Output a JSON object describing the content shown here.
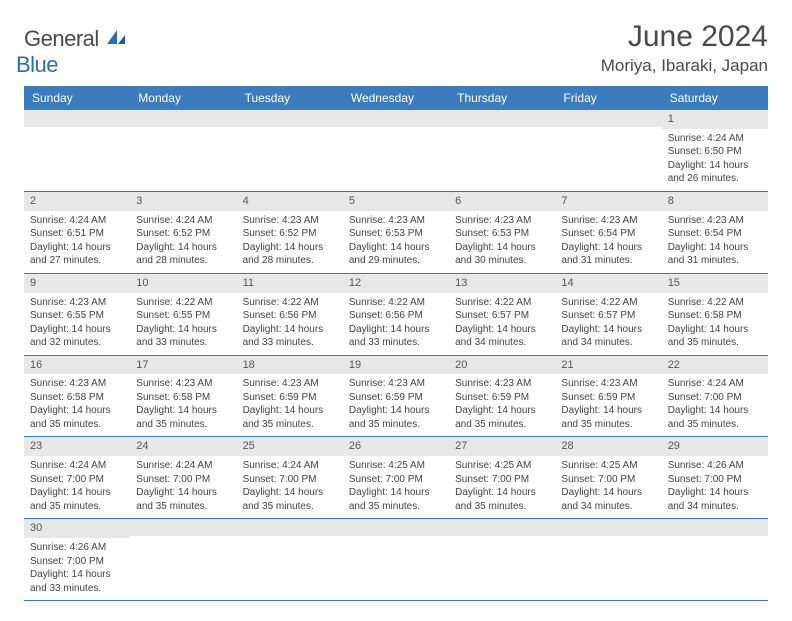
{
  "brand": {
    "part1": "General",
    "part2": "Blue"
  },
  "title": "June 2024",
  "location": "Moriya, Ibaraki, Japan",
  "colors": {
    "header_bg": "#3b7cbf",
    "header_text": "#ffffff",
    "row_divider": "#3b7cbf",
    "daynum_bg": "#e8e8e8",
    "text": "#444444",
    "brand_gray": "#4a4a4a",
    "brand_blue": "#2a6fb5",
    "page_bg": "#ffffff"
  },
  "fonts": {
    "title_size_pt": 30,
    "location_size_pt": 17,
    "day_header_size_pt": 12,
    "daynum_size_pt": 11,
    "cell_text_size_pt": 10
  },
  "calendar": {
    "type": "table",
    "columns": [
      "Sunday",
      "Monday",
      "Tuesday",
      "Wednesday",
      "Thursday",
      "Friday",
      "Saturday"
    ],
    "first_weekday_index": 6,
    "days": [
      {
        "n": 1,
        "sunrise": "4:24 AM",
        "sunset": "6:50 PM",
        "daylight": "14 hours and 26 minutes."
      },
      {
        "n": 2,
        "sunrise": "4:24 AM",
        "sunset": "6:51 PM",
        "daylight": "14 hours and 27 minutes."
      },
      {
        "n": 3,
        "sunrise": "4:24 AM",
        "sunset": "6:52 PM",
        "daylight": "14 hours and 28 minutes."
      },
      {
        "n": 4,
        "sunrise": "4:23 AM",
        "sunset": "6:52 PM",
        "daylight": "14 hours and 28 minutes."
      },
      {
        "n": 5,
        "sunrise": "4:23 AM",
        "sunset": "6:53 PM",
        "daylight": "14 hours and 29 minutes."
      },
      {
        "n": 6,
        "sunrise": "4:23 AM",
        "sunset": "6:53 PM",
        "daylight": "14 hours and 30 minutes."
      },
      {
        "n": 7,
        "sunrise": "4:23 AM",
        "sunset": "6:54 PM",
        "daylight": "14 hours and 31 minutes."
      },
      {
        "n": 8,
        "sunrise": "4:23 AM",
        "sunset": "6:54 PM",
        "daylight": "14 hours and 31 minutes."
      },
      {
        "n": 9,
        "sunrise": "4:23 AM",
        "sunset": "6:55 PM",
        "daylight": "14 hours and 32 minutes."
      },
      {
        "n": 10,
        "sunrise": "4:22 AM",
        "sunset": "6:55 PM",
        "daylight": "14 hours and 33 minutes."
      },
      {
        "n": 11,
        "sunrise": "4:22 AM",
        "sunset": "6:56 PM",
        "daylight": "14 hours and 33 minutes."
      },
      {
        "n": 12,
        "sunrise": "4:22 AM",
        "sunset": "6:56 PM",
        "daylight": "14 hours and 33 minutes."
      },
      {
        "n": 13,
        "sunrise": "4:22 AM",
        "sunset": "6:57 PM",
        "daylight": "14 hours and 34 minutes."
      },
      {
        "n": 14,
        "sunrise": "4:22 AM",
        "sunset": "6:57 PM",
        "daylight": "14 hours and 34 minutes."
      },
      {
        "n": 15,
        "sunrise": "4:22 AM",
        "sunset": "6:58 PM",
        "daylight": "14 hours and 35 minutes."
      },
      {
        "n": 16,
        "sunrise": "4:23 AM",
        "sunset": "6:58 PM",
        "daylight": "14 hours and 35 minutes."
      },
      {
        "n": 17,
        "sunrise": "4:23 AM",
        "sunset": "6:58 PM",
        "daylight": "14 hours and 35 minutes."
      },
      {
        "n": 18,
        "sunrise": "4:23 AM",
        "sunset": "6:59 PM",
        "daylight": "14 hours and 35 minutes."
      },
      {
        "n": 19,
        "sunrise": "4:23 AM",
        "sunset": "6:59 PM",
        "daylight": "14 hours and 35 minutes."
      },
      {
        "n": 20,
        "sunrise": "4:23 AM",
        "sunset": "6:59 PM",
        "daylight": "14 hours and 35 minutes."
      },
      {
        "n": 21,
        "sunrise": "4:23 AM",
        "sunset": "6:59 PM",
        "daylight": "14 hours and 35 minutes."
      },
      {
        "n": 22,
        "sunrise": "4:24 AM",
        "sunset": "7:00 PM",
        "daylight": "14 hours and 35 minutes."
      },
      {
        "n": 23,
        "sunrise": "4:24 AM",
        "sunset": "7:00 PM",
        "daylight": "14 hours and 35 minutes."
      },
      {
        "n": 24,
        "sunrise": "4:24 AM",
        "sunset": "7:00 PM",
        "daylight": "14 hours and 35 minutes."
      },
      {
        "n": 25,
        "sunrise": "4:24 AM",
        "sunset": "7:00 PM",
        "daylight": "14 hours and 35 minutes."
      },
      {
        "n": 26,
        "sunrise": "4:25 AM",
        "sunset": "7:00 PM",
        "daylight": "14 hours and 35 minutes."
      },
      {
        "n": 27,
        "sunrise": "4:25 AM",
        "sunset": "7:00 PM",
        "daylight": "14 hours and 35 minutes."
      },
      {
        "n": 28,
        "sunrise": "4:25 AM",
        "sunset": "7:00 PM",
        "daylight": "14 hours and 34 minutes."
      },
      {
        "n": 29,
        "sunrise": "4:26 AM",
        "sunset": "7:00 PM",
        "daylight": "14 hours and 34 minutes."
      },
      {
        "n": 30,
        "sunrise": "4:26 AM",
        "sunset": "7:00 PM",
        "daylight": "14 hours and 33 minutes."
      }
    ],
    "labels": {
      "sunrise_prefix": "Sunrise: ",
      "sunset_prefix": "Sunset: ",
      "daylight_prefix": "Daylight: "
    }
  }
}
